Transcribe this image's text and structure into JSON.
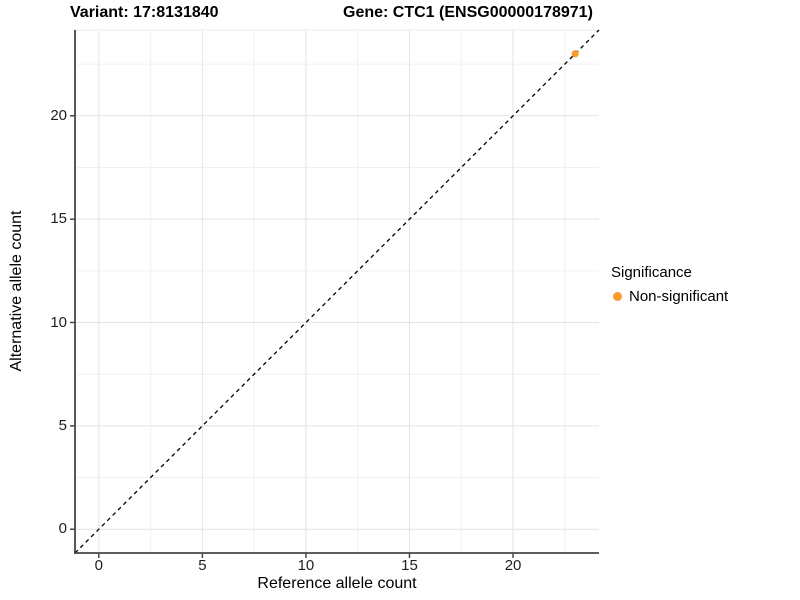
{
  "chart_data": {
    "type": "scatter",
    "title_left": "Variant: 17:8131840",
    "title_right": "Gene: CTC1 (ENSG00000178971)",
    "xlabel": "Reference allele count",
    "ylabel": "Alternative allele count",
    "xlim": [
      -1.15,
      24.15
    ],
    "ylim": [
      -1.15,
      24.15
    ],
    "x_ticks": [
      0,
      5,
      10,
      15,
      20
    ],
    "y_ticks": [
      0,
      5,
      10,
      15,
      20
    ],
    "x_minor_ticks": [
      2.5,
      7.5,
      12.5,
      17.5,
      22.5
    ],
    "y_minor_ticks": [
      2.5,
      7.5,
      12.5,
      17.5,
      22.5
    ],
    "grid": true,
    "reference_line": {
      "type": "abline",
      "slope": 1,
      "intercept": 0,
      "style": "dashed",
      "color": "#000000"
    },
    "series": [
      {
        "name": "Non-significant",
        "color": "#F89C2B",
        "points": [
          {
            "x": 23,
            "y": 23
          }
        ]
      }
    ],
    "legend": {
      "title": "Significance",
      "position": "right",
      "entries": [
        {
          "label": "Non-significant",
          "color": "#F89C2B"
        }
      ]
    },
    "colors": {
      "axis_line": "#464646",
      "major_grid": "#e3e3e3",
      "minor_grid": "#f0f0f0",
      "panel_top_border": "#ebebeb",
      "tick_text": "#1f1f1f"
    }
  }
}
